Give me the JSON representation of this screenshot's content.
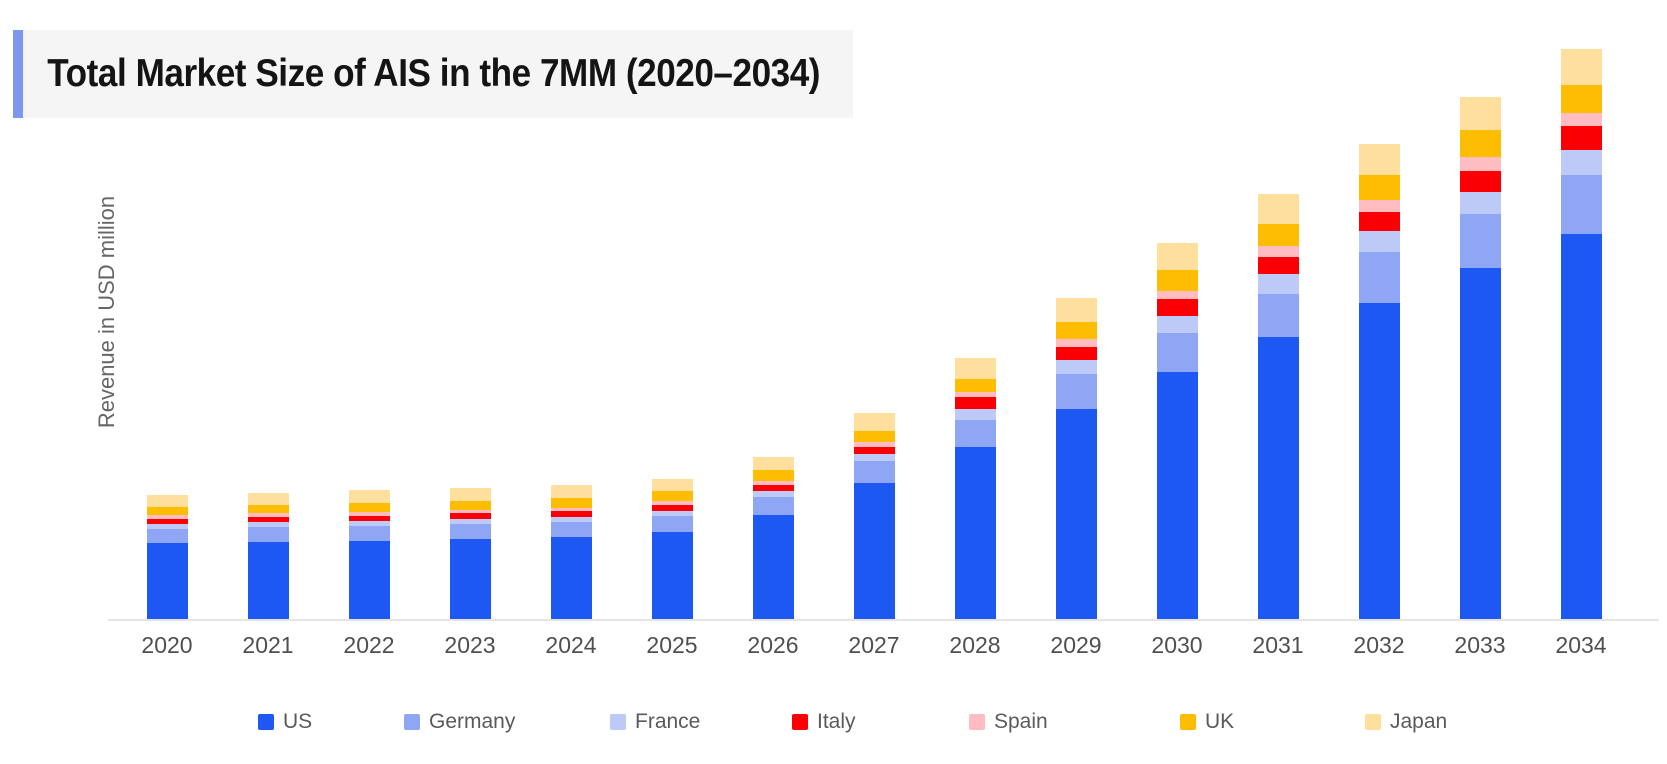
{
  "header": {
    "title": "Total Market Size of AIS in the 7MM (2020–2034)"
  },
  "colors": {
    "title_accent": "#7e97ee",
    "title_background": "#f5f5f5",
    "title_text": "#141414",
    "axis_line": "#e4e4e4",
    "tick_label": "#4f4f4f",
    "axis_title": "#666666",
    "legend_label": "#5a5a5a"
  },
  "chart_data": {
    "type": "bar",
    "stacked": true,
    "title": "Total Market Size of AIS in the 7MM (2020–2034)",
    "xlabel": "",
    "ylabel": "Revenue in USD million",
    "grid": false,
    "y_axis_tick_labels": [],
    "value_units": "relative revenue (y-axis unlabeled; values estimated from bar heights)",
    "legend_position": "bottom",
    "categories": [
      "2020",
      "2021",
      "2022",
      "2023",
      "2024",
      "2025",
      "2026",
      "2027",
      "2028",
      "2029",
      "2030",
      "2031",
      "2032",
      "2033",
      "2034"
    ],
    "series": [
      {
        "name": "US",
        "color": "#1e58f2",
        "values": [
          77,
          78,
          79,
          81,
          83,
          88,
          105,
          137,
          173,
          211,
          248,
          283,
          317,
          352,
          386
        ]
      },
      {
        "name": "Germany",
        "color": "#8fa6f4",
        "values": [
          14,
          15,
          15,
          15,
          15,
          16,
          18,
          22,
          27,
          35,
          39,
          43,
          51,
          54,
          59
        ]
      },
      {
        "name": "France",
        "color": "#bdcaf8",
        "values": [
          5,
          5,
          5,
          5,
          5,
          5,
          6,
          7,
          11,
          14,
          17,
          20,
          21,
          22,
          25
        ]
      },
      {
        "name": "Italy",
        "color": "#fa0004",
        "values": [
          5,
          5,
          5,
          6,
          6,
          6,
          6,
          7,
          12,
          13,
          17,
          17,
          19,
          21,
          24
        ]
      },
      {
        "name": "Spain",
        "color": "#ffbdc1",
        "values": [
          4,
          4,
          4,
          3,
          3,
          4,
          4,
          5,
          5,
          8,
          8,
          11,
          12,
          14,
          13
        ]
      },
      {
        "name": "UK",
        "color": "#fcbd02",
        "values": [
          8,
          8,
          9,
          9,
          10,
          10,
          11,
          11,
          13,
          17,
          21,
          22,
          25,
          27,
          28
        ]
      },
      {
        "name": "Japan",
        "color": "#ffdf9e",
        "values": [
          12,
          12,
          13,
          13,
          13,
          12,
          13,
          18,
          21,
          24,
          27,
          30,
          31,
          33,
          36
        ]
      }
    ]
  }
}
